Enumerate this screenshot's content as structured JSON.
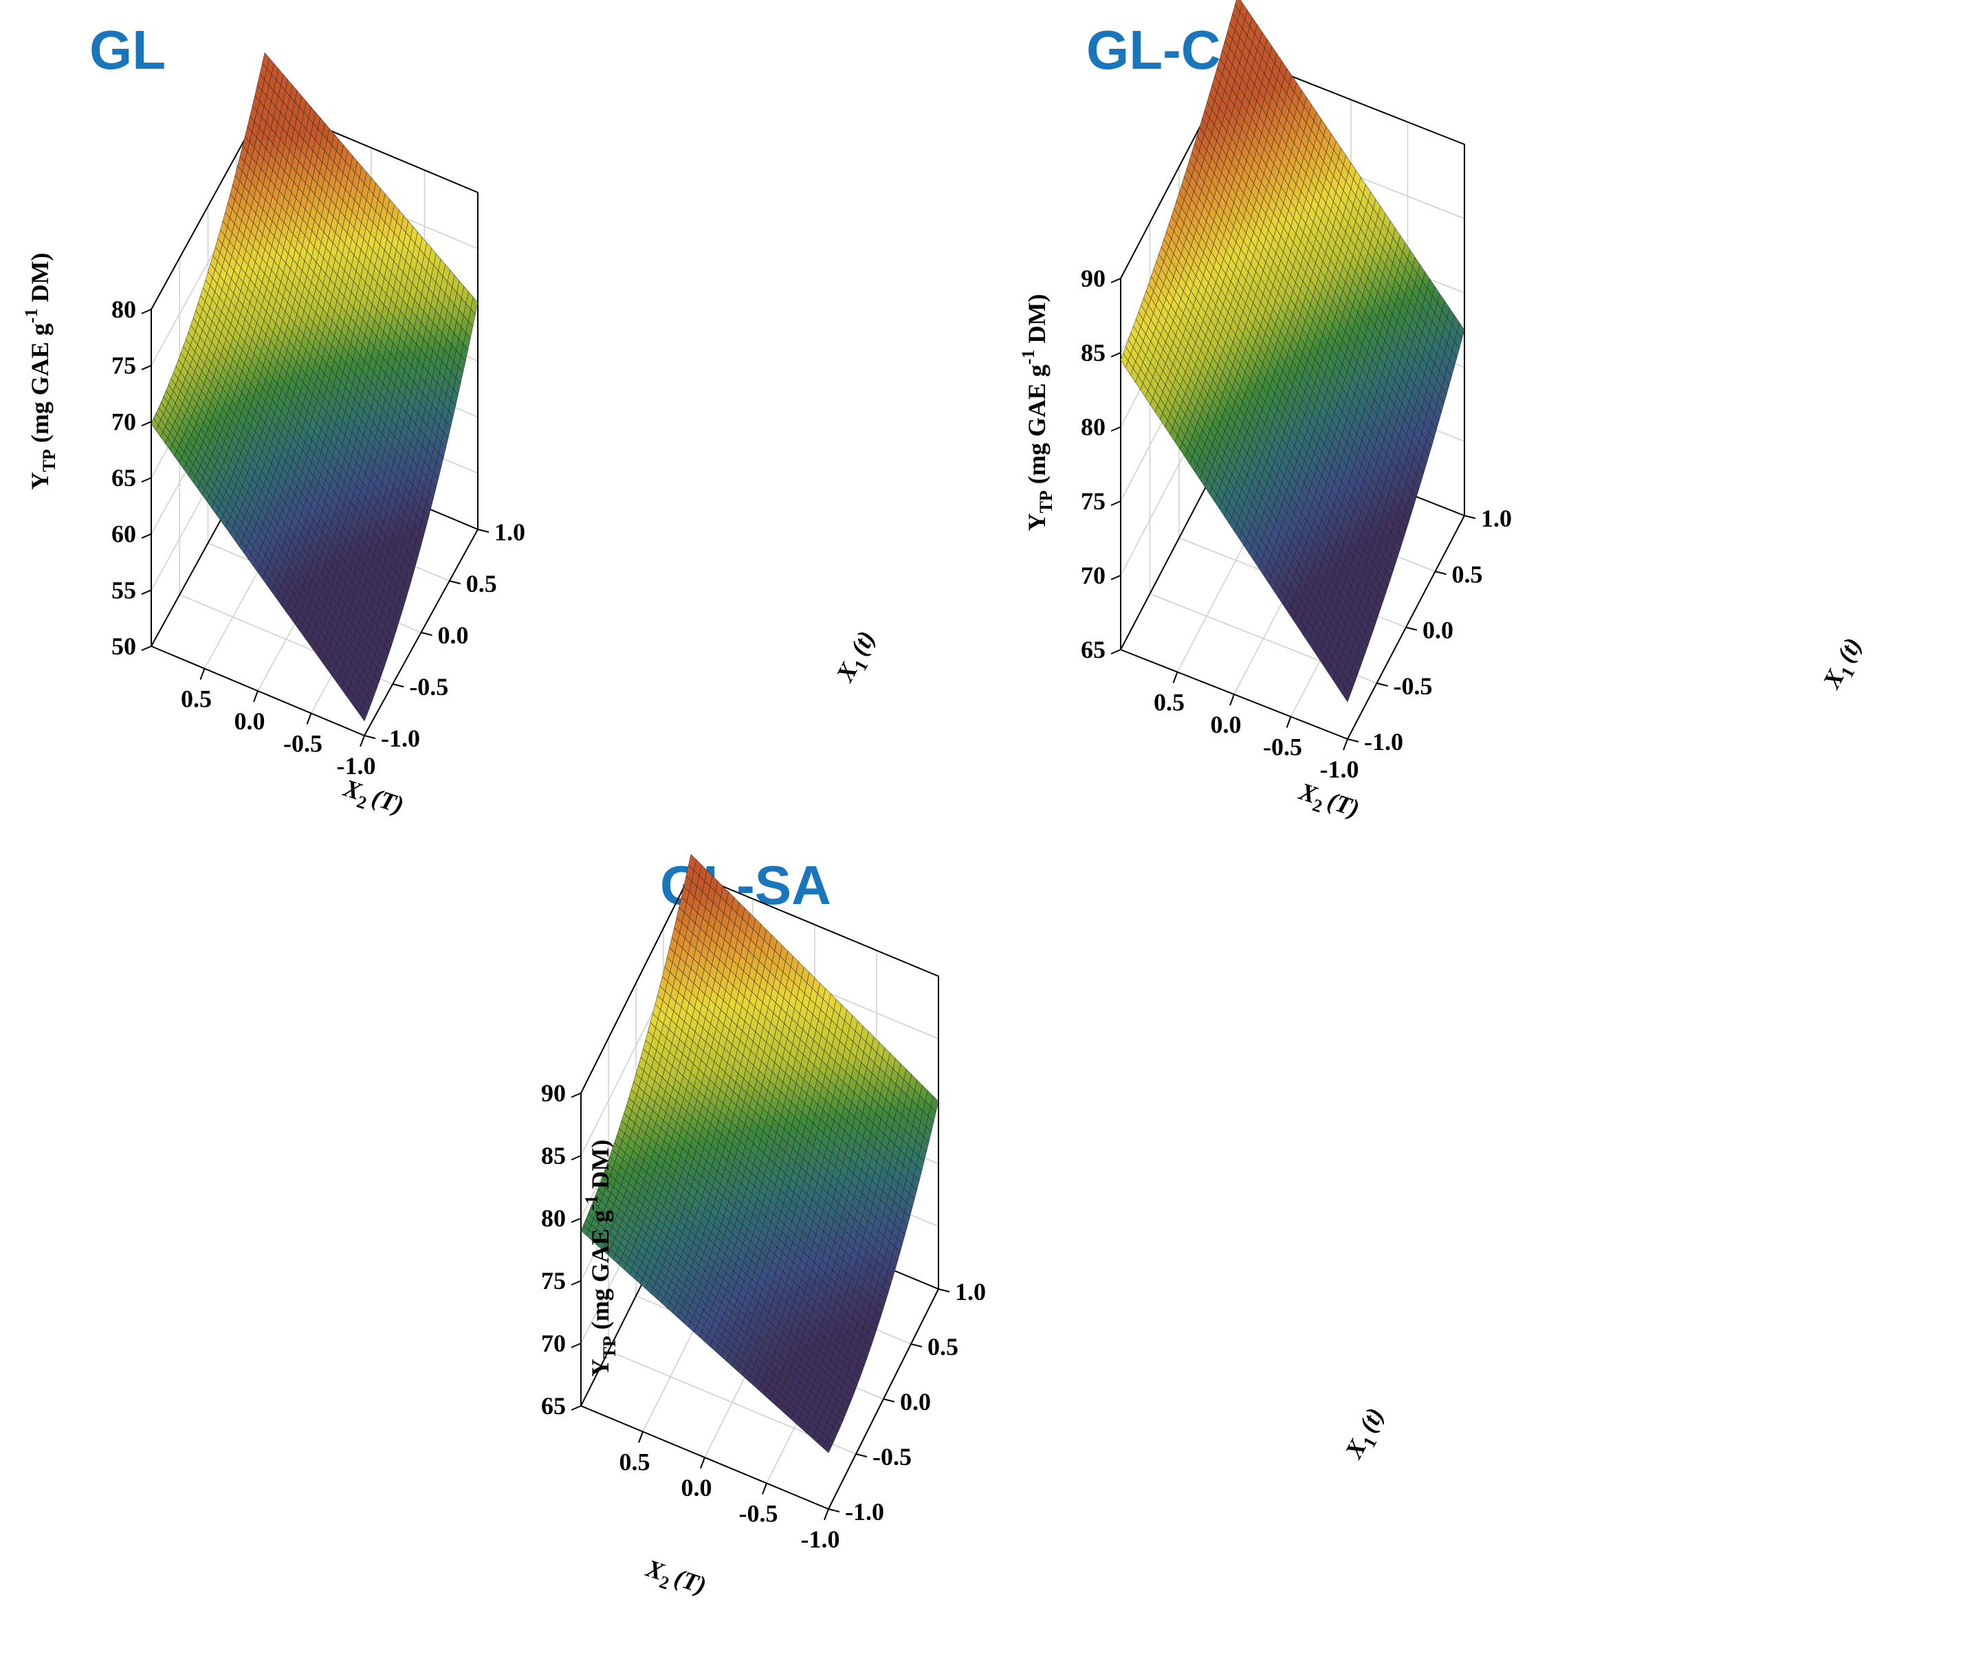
{
  "figure_axis_labels": {
    "x1": "X1 (t)",
    "x1_var": "X",
    "x1_sub": "1",
    "x1_paren": "(t)",
    "x2": "X2 (T)",
    "x2_var": "X",
    "x2_sub": "2",
    "x2_paren": "(T)",
    "y": "YTP (mg GAE g-1 DM)",
    "y_var": "Y",
    "y_sub": "TP",
    "y_mid": " (mg GAE g",
    "y_sup": "-1",
    "y_end": " DM)"
  },
  "colors": {
    "title": "#1976bc",
    "colormap": [
      "#3f2f5c",
      "#3b4d82",
      "#2f6f72",
      "#3c8a3a",
      "#b7c132",
      "#e8d837",
      "#e0962f",
      "#c4572a"
    ]
  },
  "chart_data": [
    {
      "type": "surface",
      "title": "GL",
      "xlabel": "X2 (T)",
      "ylabel": "X1 (t)",
      "zlabel": "YTP (mg GAE g-1 DM)",
      "x2_range": [
        -1.0,
        1.0
      ],
      "x1_range": [
        -1.0,
        1.0
      ],
      "zlim": [
        50,
        80
      ],
      "x2_ticks": [
        "0.5",
        "0.0",
        "-0.5",
        "-1.0"
      ],
      "x1_ticks": [
        "1.0",
        "0.5",
        "0.0",
        "-0.5",
        "-1.0"
      ],
      "z_ticks": [
        "80",
        "75",
        "70",
        "65",
        "60",
        "55",
        "50"
      ],
      "corner_values": {
        "x2_min_x1_min": 51.3,
        "x2_min_x1_max": 70.2,
        "x2_max_x1_min": 69.8,
        "x2_max_x1_max": 84.5
      },
      "curvature": -3.0
    },
    {
      "type": "surface",
      "title": "GL-CA",
      "xlabel": "X2 (T)",
      "ylabel": "X1 (t)",
      "zlabel": "YTP (mg GAE g-1 DM)",
      "x2_range": [
        -1.0,
        1.0
      ],
      "x1_range": [
        -1.0,
        1.0
      ],
      "zlim": [
        65,
        90
      ],
      "x2_ticks": [
        "0.5",
        "0.0",
        "-0.5",
        "-1.0"
      ],
      "x1_ticks": [
        "1.0",
        "0.5",
        "0.0",
        "-0.5",
        "-1.0"
      ],
      "z_ticks": [
        "90",
        "85",
        "80",
        "75",
        "70",
        "65"
      ],
      "corner_values": {
        "x2_min_x1_min": 67.5,
        "x2_min_x1_max": 77.5,
        "x2_max_x1_min": 84.5,
        "x2_max_x1_max": 94.0
      },
      "curvature": -1.0
    },
    {
      "type": "surface",
      "title": "GL-SA",
      "xlabel": "X2 (T)",
      "ylabel": "X1 (t)",
      "zlabel": "YTP (mg GAE g-1 DM)",
      "x2_range": [
        -1.0,
        1.0
      ],
      "x1_range": [
        -1.0,
        1.0
      ],
      "zlim": [
        65,
        90
      ],
      "x2_ticks": [
        "0.5",
        "0.0",
        "-0.5",
        "-1.0"
      ],
      "x1_ticks": [
        "1.0",
        "0.5",
        "0.0",
        "-0.5",
        "-1.0"
      ],
      "z_ticks": [
        "90",
        "85",
        "80",
        "75",
        "70",
        "65"
      ],
      "corner_values": {
        "x2_min_x1_min": 69.5,
        "x2_min_x1_max": 80.0,
        "x2_max_x1_min": 79.0,
        "x2_max_x1_max": 91.5
      },
      "curvature": -2.5
    }
  ]
}
